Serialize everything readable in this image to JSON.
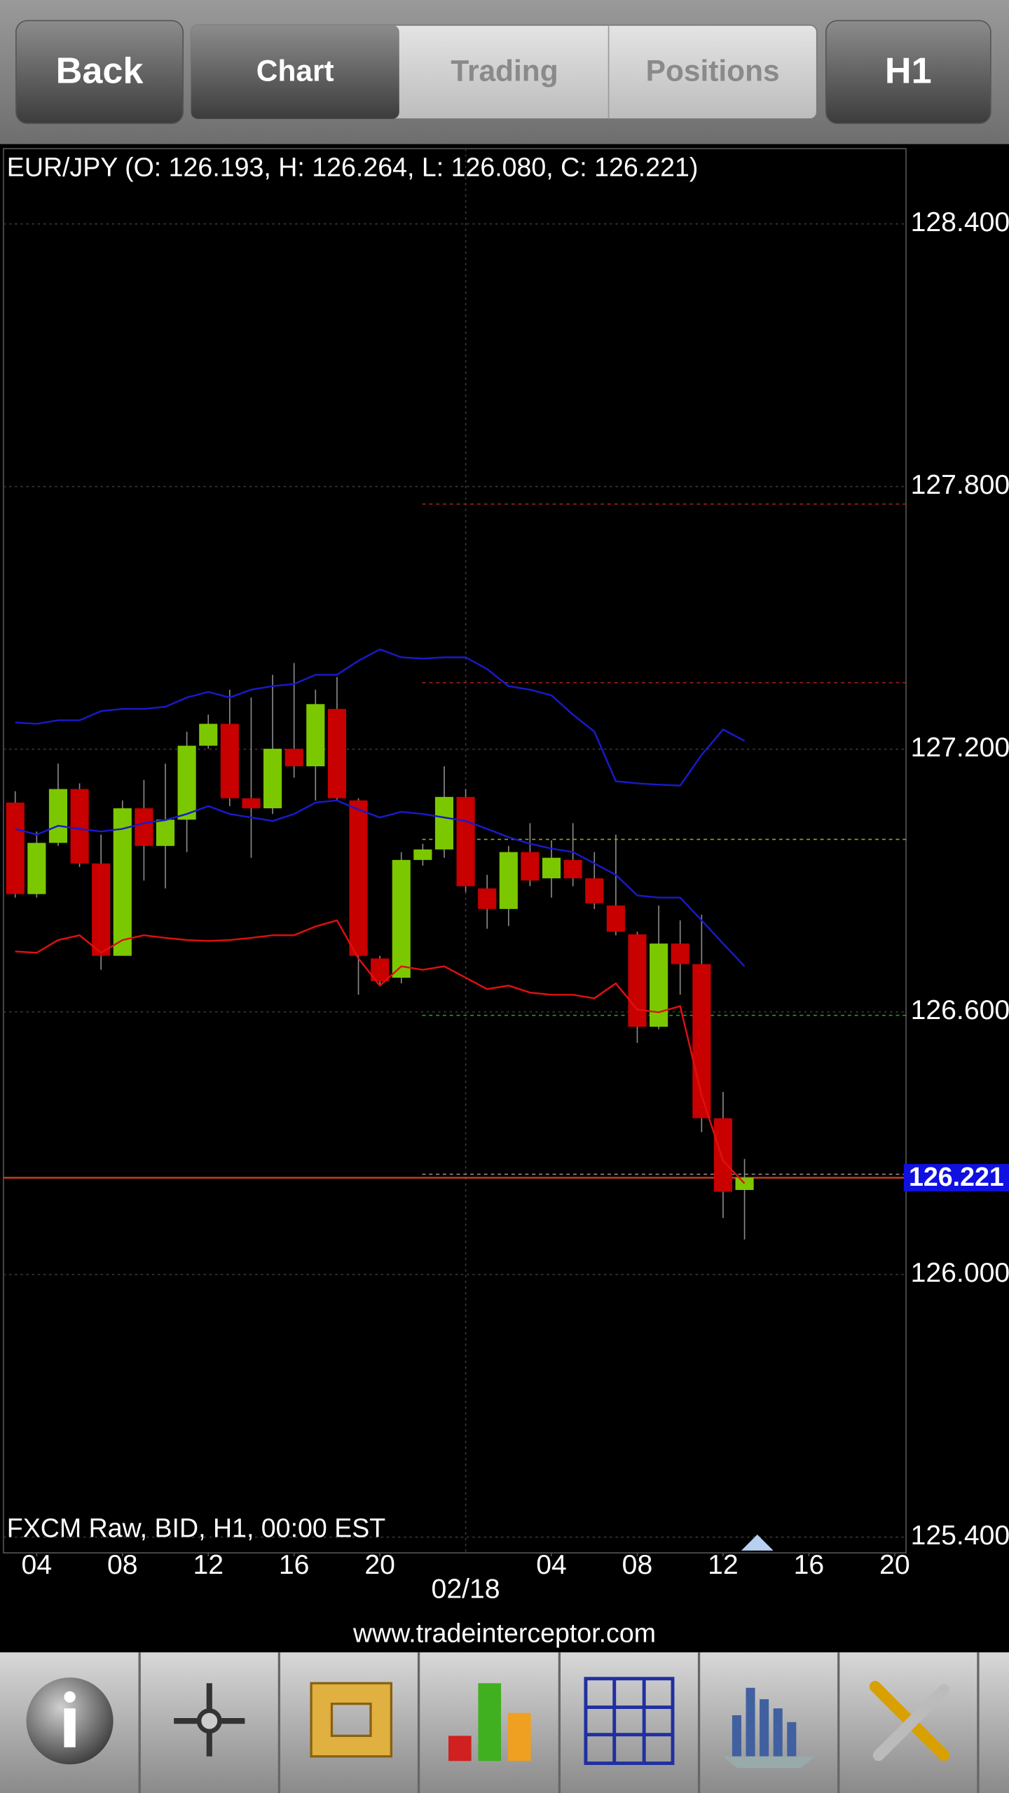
{
  "toolbar": {
    "buttons": [
      "Back",
      "Chart",
      "Trading",
      "Positions",
      "H1"
    ]
  },
  "footer": {
    "url": "www.tradeinterceptor.com"
  },
  "chart_data": {
    "type": "candlestick",
    "title": "EUR/JPY (O: 126.193, H: 126.264, L: 126.080, C: 126.221)",
    "source_label": "FXCM Raw, BID, H1, 00:00 EST",
    "x": [
      3,
      4,
      5,
      6,
      7,
      8,
      9,
      10,
      11,
      12,
      13,
      14,
      15,
      16,
      17,
      18,
      19,
      20,
      21,
      22,
      23,
      24,
      25,
      26,
      27,
      28,
      29,
      30,
      31,
      32,
      33,
      34,
      35,
      36,
      37
    ],
    "open": [
      127.078,
      126.869,
      126.986,
      127.109,
      126.939,
      126.728,
      127.065,
      126.979,
      127.039,
      127.208,
      127.258,
      127.088,
      127.065,
      127.201,
      127.161,
      127.292,
      127.083,
      126.722,
      126.678,
      126.947,
      126.971,
      127.091,
      126.882,
      126.835,
      126.965,
      126.905,
      126.947,
      126.905,
      126.843,
      126.777,
      126.566,
      126.756,
      126.709,
      126.357,
      126.193
    ],
    "high": [
      127.104,
      127.012,
      127.167,
      127.122,
      127.005,
      127.083,
      127.13,
      127.167,
      127.24,
      127.279,
      127.336,
      127.318,
      127.37,
      127.397,
      127.336,
      127.365,
      127.088,
      126.728,
      126.965,
      126.984,
      127.161,
      127.109,
      126.913,
      126.979,
      127.031,
      126.992,
      127.031,
      126.965,
      127.005,
      126.783,
      126.843,
      126.809,
      126.822,
      126.417,
      126.264
    ],
    "low": [
      126.861,
      126.861,
      126.979,
      126.931,
      126.696,
      126.728,
      126.9,
      126.882,
      126.965,
      127.201,
      127.07,
      126.952,
      127.052,
      127.135,
      127.083,
      127.083,
      126.639,
      126.66,
      126.665,
      126.934,
      126.952,
      126.874,
      126.79,
      126.796,
      126.887,
      126.861,
      126.887,
      126.835,
      126.775,
      126.529,
      126.56,
      126.639,
      126.325,
      126.129,
      126.08
    ],
    "close": [
      126.869,
      126.986,
      127.109,
      126.939,
      126.728,
      127.065,
      126.979,
      127.039,
      127.208,
      127.258,
      127.088,
      127.065,
      127.201,
      127.161,
      127.303,
      127.088,
      126.728,
      126.67,
      126.947,
      126.971,
      127.091,
      126.887,
      126.835,
      126.965,
      126.9,
      126.952,
      126.905,
      126.848,
      126.783,
      126.566,
      126.756,
      126.709,
      126.357,
      126.189,
      126.221
    ],
    "up_color": "#7cc800",
    "down_color": "#c80000",
    "wick_color": "#8a8a8a",
    "overlays": [
      {
        "color": "#1a1acc",
        "values": [
          127.261,
          127.258,
          127.266,
          127.266,
          127.287,
          127.292,
          127.292,
          127.297,
          127.318,
          127.331,
          127.318,
          127.336,
          127.344,
          127.349,
          127.37,
          127.37,
          127.402,
          127.428,
          127.41,
          127.407,
          127.41,
          127.41,
          127.383,
          127.344,
          127.336,
          127.323,
          127.279,
          127.24,
          127.127,
          127.122,
          127.119,
          127.117,
          127.187,
          127.245,
          127.219
        ]
      },
      {
        "color": "#1a1acc",
        "values": [
          127.018,
          127.005,
          127.025,
          127.018,
          127.012,
          127.018,
          127.031,
          127.038,
          127.052,
          127.07,
          127.052,
          127.044,
          127.036,
          127.052,
          127.078,
          127.083,
          127.062,
          127.044,
          127.057,
          127.052,
          127.044,
          127.036,
          127.018,
          126.999,
          126.984,
          126.973,
          126.965,
          126.939,
          126.913,
          126.866,
          126.861,
          126.861,
          126.809,
          126.756,
          126.704
        ]
      },
      {
        "color": "#e01010",
        "values": [
          126.738,
          126.735,
          126.764,
          126.775,
          126.735,
          126.764,
          126.775,
          126.769,
          126.764,
          126.762,
          126.764,
          126.769,
          126.775,
          126.775,
          126.795,
          126.809,
          126.722,
          126.66,
          126.704,
          126.696,
          126.704,
          126.678,
          126.652,
          126.66,
          126.644,
          126.639,
          126.639,
          126.631,
          126.665,
          126.605,
          126.599,
          126.613,
          126.409,
          126.26,
          126.208
        ]
      }
    ],
    "levels": [
      {
        "value": 127.76,
        "color": "#a02020"
      },
      {
        "value": 127.352,
        "color": "#a02020"
      },
      {
        "value": 126.994,
        "color": "#a0a020"
      },
      {
        "value": 126.592,
        "color": "#20a020"
      },
      {
        "value": 126.229,
        "color": "#909090"
      }
    ],
    "current_price": {
      "value": 126.221,
      "label": "126.221",
      "line_color": "#d04020",
      "box_color": "#1010e0"
    },
    "xlim": [
      2.45,
      44.53
    ],
    "xticks": [
      {
        "value": 4,
        "label": "04"
      },
      {
        "value": 8,
        "label": "08"
      },
      12,
      16,
      20,
      {
        "value": 28,
        "label": "04"
      },
      {
        "value": 32,
        "label": "08"
      },
      {
        "value": 36,
        "label": "12"
      },
      {
        "value": 40,
        "label": "16"
      },
      {
        "value": 44,
        "label": "20"
      }
    ],
    "date_label": {
      "value": 24,
      "label": "02/18"
    },
    "ylim": [
      125.364,
      128.572
    ],
    "yticks": [
      {
        "value": 128.4,
        "label": "128.400"
      },
      {
        "value": 127.8,
        "label": "127.800"
      },
      {
        "value": 127.2,
        "label": "127.200"
      },
      {
        "value": 126.6,
        "label": "126.600"
      },
      {
        "value": 126.0,
        "label": "126.000"
      },
      {
        "value": 125.4,
        "label": "125.400"
      }
    ],
    "grid": true
  }
}
